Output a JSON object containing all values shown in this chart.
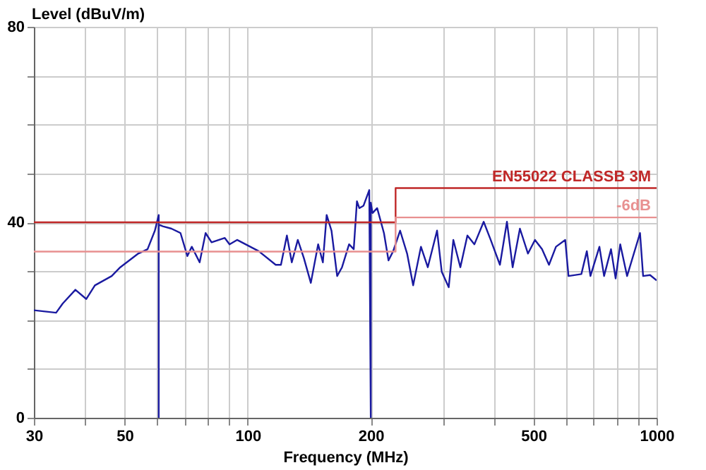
{
  "chart_data": {
    "type": "line",
    "xlabel": "Frequency (MHz)",
    "ylabel": "Level (dBuV/m)",
    "log": "x",
    "grid": true,
    "marker": "none",
    "line_style": "solid",
    "xlim": [
      30,
      1000
    ],
    "ylim": [
      0,
      80
    ],
    "xticks": [
      30,
      {
        "value": 40,
        "label": null
      },
      50,
      {
        "value": 60,
        "label": null
      },
      {
        "value": 70,
        "label": null
      },
      {
        "value": 80,
        "label": null
      },
      {
        "value": 90,
        "label": null
      },
      100,
      200,
      {
        "value": 300,
        "label": null
      },
      {
        "value": 400,
        "label": null
      },
      500,
      {
        "value": 600,
        "label": null
      },
      {
        "value": 700,
        "label": null
      },
      {
        "value": 800,
        "label": null
      },
      {
        "value": 900,
        "label": null
      },
      1000
    ],
    "yticks": [
      0,
      {
        "value": 10,
        "label": null
      },
      {
        "value": 20,
        "label": null
      },
      {
        "value": 30,
        "label": null
      },
      40,
      {
        "value": 50,
        "label": null
      },
      {
        "value": 60,
        "label": null
      },
      {
        "value": 70,
        "label": null
      },
      80
    ],
    "series": [
      {
        "color": "#1a1aa0",
        "x": [
          30,
          34.0,
          35.3,
          37.9,
          40.3,
          42.3,
          46.5,
          48.8,
          54.0,
          56.9,
          59.3,
          60.6,
          60.6,
          60.6,
          62.0,
          65.1,
          68.5,
          71.2,
          73.0,
          76.3,
          78.9,
          81.6,
          87.9,
          90.3,
          94.2,
          106.4,
          117.1,
          120.6,
          124.7,
          128.2,
          132.6,
          137.2,
          142.7,
          148.7,
          152.7,
          156.0,
          160.3,
          165.5,
          170.1,
          177.0,
          181.7,
          185.0,
          187.5,
          192.0,
          198.3,
          200,
          200,
          202.0,
          207.3,
          215.4,
          221.0,
          226.9,
          235.9,
          245.4,
          253.9,
          265.3,
          275.7,
          290.5,
          298.2,
          310.2,
          318.4,
          331.2,
          344.6,
          358.5,
          377.7,
          392.9,
          413.9,
          430.6,
          444.6,
          463.2,
          484.7,
          504.2,
          524.6,
          545.6,
          567.5,
          597.8,
          609,
          654.7,
          675.2,
          689,
          724.8,
          744,
          773.7,
          794,
          815.0,
          847,
          911,
          927,
          964,
          1000
        ],
        "values": [
          22.0,
          21.5,
          23.4,
          26.2,
          24.3,
          27.1,
          29.0,
          30.8,
          33.6,
          34.5,
          38.3,
          41.5,
          0,
          39.5,
          39.2,
          38.7,
          37.8,
          33.1,
          35.0,
          31.8,
          37.8,
          35.9,
          36.8,
          35.5,
          36.4,
          34.1,
          31.3,
          31.3,
          37.3,
          31.8,
          36.4,
          32.7,
          27.6,
          35.5,
          31.8,
          41.5,
          38.3,
          29.0,
          30.8,
          35.5,
          34.5,
          44.3,
          42.9,
          43.4,
          46.6,
          0,
          44.0,
          41.9,
          42.9,
          37.8,
          32.2,
          34.1,
          38.3,
          33.6,
          27.1,
          35.0,
          30.8,
          38.3,
          29.9,
          26.7,
          36.4,
          30.8,
          37.3,
          35.5,
          40.1,
          36.4,
          31.3,
          40.1,
          30.8,
          38.7,
          33.6,
          36.4,
          34.5,
          31.3,
          35.0,
          36.4,
          29.0,
          29.4,
          34.1,
          29.0,
          35.0,
          29.0,
          34.5,
          28.5,
          35.5,
          29.0,
          37.8,
          29.0,
          29.2,
          28.1
        ]
      },
      {
        "name": "EN55022 CLASSB 3M",
        "color": "#c02828",
        "x": [
          30,
          230,
          230,
          1000
        ],
        "values": [
          40,
          40,
          47,
          47
        ]
      },
      {
        "name": "-6dB",
        "color": "#e89090",
        "x": [
          30,
          230,
          230,
          1000
        ],
        "values": [
          34,
          34,
          41,
          41
        ]
      }
    ]
  }
}
